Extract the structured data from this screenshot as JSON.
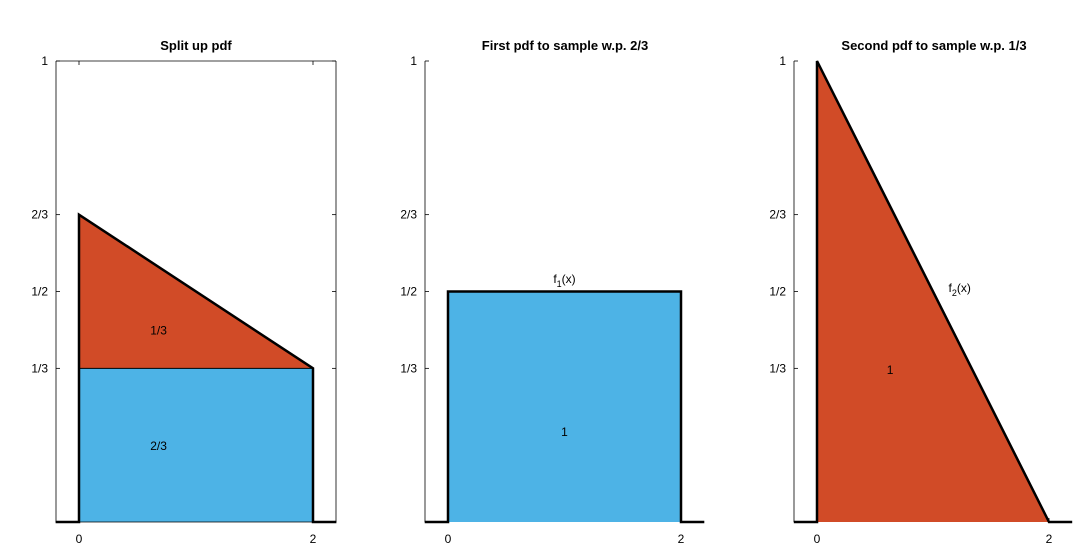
{
  "colors": {
    "red": "#D14B27",
    "blue": "#4DB3E6",
    "line": "#000000"
  },
  "chart_data": [
    {
      "type": "area",
      "title": "Split up pdf",
      "xlim": [
        0,
        2
      ],
      "ylim": [
        0,
        1
      ],
      "x_ticks": [
        {
          "value": 0,
          "label": "0"
        },
        {
          "value": 2,
          "label": "2"
        }
      ],
      "y_ticks": [
        {
          "value": 0.3333,
          "label": "1/3"
        },
        {
          "value": 0.5,
          "label": "1/2"
        },
        {
          "value": 0.6667,
          "label": "2/3"
        },
        {
          "value": 1,
          "label": "1"
        }
      ],
      "box": true,
      "regions": [
        {
          "color": "blue",
          "points": [
            [
              0,
              0
            ],
            [
              2,
              0
            ],
            [
              2,
              0.3333
            ],
            [
              0,
              0.3333
            ]
          ],
          "label": "2/3",
          "label_at": [
            0.68,
            0.165
          ]
        },
        {
          "color": "red",
          "points": [
            [
              0,
              0.3333
            ],
            [
              0,
              0.6667
            ],
            [
              2,
              0.3333
            ]
          ],
          "label": "1/3",
          "label_at": [
            0.68,
            0.415
          ]
        }
      ],
      "curve": [
        [
          -0.2,
          0
        ],
        [
          0,
          0
        ],
        [
          0,
          0.6667
        ],
        [
          2,
          0.3333
        ],
        [
          2,
          0
        ],
        [
          2.2,
          0
        ]
      ],
      "separators": [
        [
          [
            0,
            0.3333
          ],
          [
            2,
            0.3333
          ]
        ]
      ]
    },
    {
      "type": "area",
      "title": "First pdf to sample w.p. 2/3",
      "xlim": [
        0,
        2
      ],
      "ylim": [
        0,
        1
      ],
      "x_ticks": [
        {
          "value": 0,
          "label": "0"
        },
        {
          "value": 2,
          "label": "2"
        }
      ],
      "y_ticks": [
        {
          "value": 0.3333,
          "label": "1/3"
        },
        {
          "value": 0.5,
          "label": "1/2"
        },
        {
          "value": 0.6667,
          "label": "2/3"
        },
        {
          "value": 1,
          "label": "1"
        }
      ],
      "box": false,
      "regions": [
        {
          "color": "blue",
          "points": [
            [
              0,
              0
            ],
            [
              2,
              0
            ],
            [
              2,
              0.5
            ],
            [
              0,
              0.5
            ]
          ],
          "label": "1",
          "label_at": [
            1.0,
            0.195
          ]
        }
      ],
      "curve": [
        [
          -0.2,
          0
        ],
        [
          0,
          0
        ],
        [
          0,
          0.5
        ],
        [
          2,
          0.5
        ],
        [
          2,
          0
        ],
        [
          2.2,
          0
        ]
      ],
      "separators": [],
      "curve_label": {
        "base": "f",
        "sub": "1",
        "suffix": "(x)",
        "at": [
          1.0,
          0.51
        ]
      }
    },
    {
      "type": "area",
      "title": "Second pdf to sample w.p. 1/3",
      "xlim": [
        0,
        2
      ],
      "ylim": [
        0,
        1
      ],
      "x_ticks": [
        {
          "value": 0,
          "label": "0"
        },
        {
          "value": 2,
          "label": "2"
        }
      ],
      "y_ticks": [
        {
          "value": 0.3333,
          "label": "1/3"
        },
        {
          "value": 0.5,
          "label": "1/2"
        },
        {
          "value": 0.6667,
          "label": "2/3"
        },
        {
          "value": 1,
          "label": "1"
        }
      ],
      "box": false,
      "regions": [
        {
          "color": "red",
          "points": [
            [
              0,
              0
            ],
            [
              0,
              1
            ],
            [
              2,
              0
            ]
          ],
          "label": "1",
          "label_at": [
            0.63,
            0.33
          ]
        }
      ],
      "curve": [
        [
          -0.2,
          0
        ],
        [
          0,
          0
        ],
        [
          0,
          1
        ],
        [
          2,
          0
        ],
        [
          2.2,
          0
        ]
      ],
      "separators": [],
      "curve_label": {
        "base": "f",
        "sub": "2",
        "suffix": "(x)",
        "at": [
          1.23,
          0.49
        ]
      }
    }
  ]
}
